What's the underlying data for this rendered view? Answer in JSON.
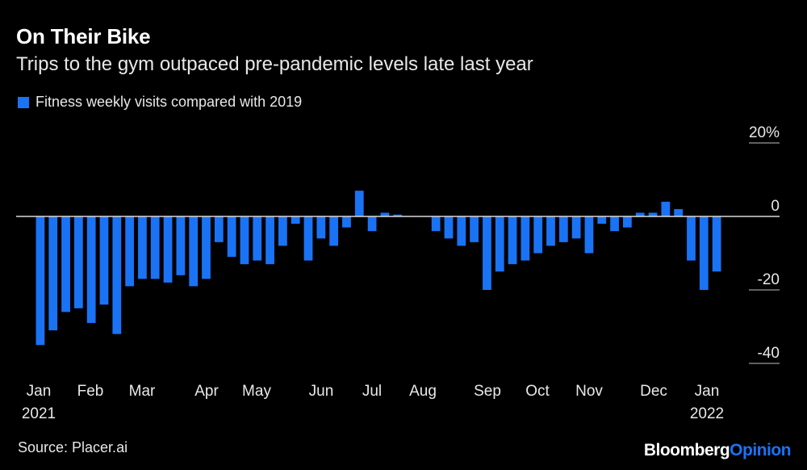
{
  "chart_data": {
    "type": "bar",
    "title": "On Their Bike",
    "subtitle": "Trips to the gym outpaced pre-pandemic levels late last year",
    "legend": [
      "Fitness weekly visits compared with 2019"
    ],
    "xlabel": "",
    "ylabel": "",
    "ylim": [
      -40,
      20
    ],
    "yticks": [
      20,
      0,
      -20,
      -40
    ],
    "ytick_labels": [
      "20%",
      "0",
      "-20",
      "-40"
    ],
    "grid": false,
    "legend_position": "top-left",
    "month_labels": [
      "Jan",
      "Feb",
      "Mar",
      "Apr",
      "May",
      "Jun",
      "Jul",
      "Aug",
      "Sep",
      "Oct",
      "Nov",
      "Dec",
      "Jan"
    ],
    "year_labels": [
      "2021",
      "2022"
    ],
    "series": [
      {
        "name": "Fitness weekly visits compared with 2019",
        "values": [
          -35,
          -31,
          -26,
          -25,
          -29,
          -24,
          -32,
          -19,
          -17,
          -17,
          -18,
          -16,
          -19,
          -17,
          -7,
          -11,
          -13,
          -12,
          -13,
          -8,
          -2,
          -12,
          -6,
          -8,
          -3,
          7,
          -4,
          1,
          0.5,
          0,
          0,
          -4,
          -6,
          -8,
          -7,
          -20,
          -15,
          -13,
          -12,
          -10,
          -8,
          -7,
          -6,
          -10,
          -2,
          -4,
          -3,
          1,
          1,
          4,
          2,
          -12,
          -20,
          -15
        ]
      }
    ]
  },
  "footer": {
    "source": "Source: Placer.ai",
    "brand_primary": "Bloomberg",
    "brand_secondary": "Opinion"
  },
  "colors": {
    "bar": "#1a73f5",
    "background": "#000000",
    "zero_line": "#d9d9d9"
  }
}
